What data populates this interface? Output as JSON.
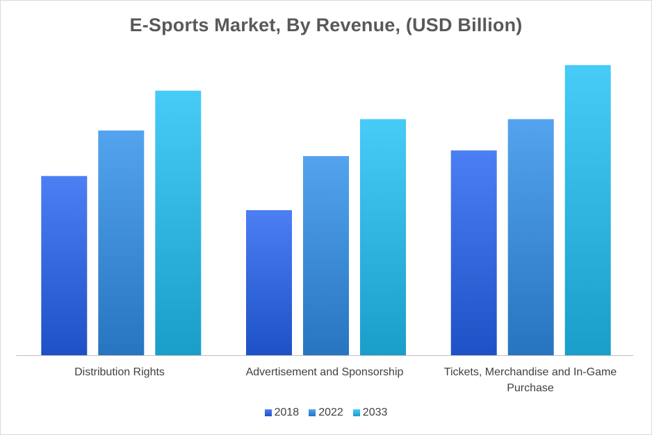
{
  "chart_data": {
    "type": "bar",
    "title": "E-Sports Market, By Revenue, (USD Billion)",
    "categories": [
      "Distribution Rights",
      "Advertisement and Sponsorship",
      "Tickets, Merchandise and In-Game Purchase"
    ],
    "series": [
      {
        "name": "2018",
        "values": [
          0.63,
          0.51,
          0.72
        ],
        "color": "#2563f0"
      },
      {
        "name": "2022",
        "values": [
          0.79,
          0.7,
          0.83
        ],
        "color": "#2f8fea"
      },
      {
        "name": "2033",
        "values": [
          0.93,
          0.83,
          1.02
        ],
        "color": "#1ec0f5"
      }
    ],
    "xlabel": "",
    "ylabel": "",
    "ylim": [
      0,
      1.1
    ],
    "grid": false,
    "axis_values_shown": false,
    "legend_position": "bottom"
  }
}
